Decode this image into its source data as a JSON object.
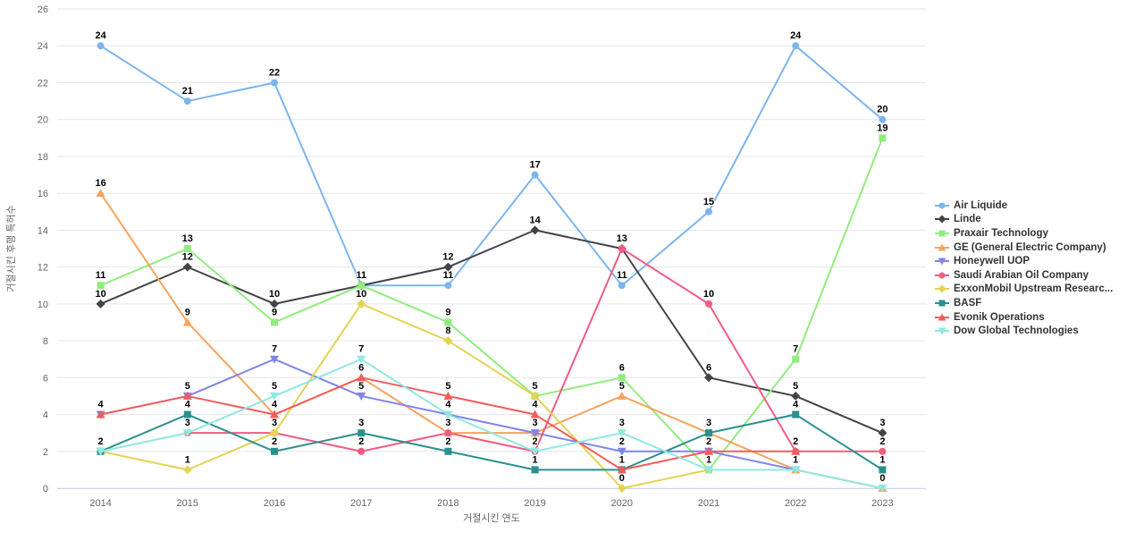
{
  "chart_data": {
    "type": "line",
    "title": "",
    "xlabel": "거절시킨 연도",
    "ylabel": "거절시킨 후행 특허수",
    "categories": [
      "2014",
      "2015",
      "2016",
      "2017",
      "2018",
      "2019",
      "2020",
      "2021",
      "2022",
      "2023"
    ],
    "ylim": [
      0,
      26
    ],
    "ytick_step": 2,
    "yticks": [
      0,
      2,
      4,
      6,
      8,
      10,
      12,
      14,
      16,
      18,
      20,
      22,
      24,
      26
    ],
    "grid": true,
    "legend_position": "right",
    "background_color": "#ffffff",
    "gridline_color": "#e6e6e6",
    "xaxis_line_color": "#ccd6eb",
    "tick_label_color": "#666666",
    "legend_text_color": "#333333",
    "data_label_color": "#000000",
    "series": [
      {
        "name": "Air Liquide",
        "color": "#7cb5ec",
        "marker": "circle",
        "values": [
          24,
          21,
          22,
          11,
          11,
          17,
          11,
          15,
          24,
          20
        ]
      },
      {
        "name": "Linde",
        "color": "#434348",
        "marker": "diamond",
        "values": [
          10,
          12,
          10,
          11,
          12,
          14,
          13,
          6,
          5,
          3
        ]
      },
      {
        "name": "Praxair Technology",
        "color": "#90ed7d",
        "marker": "square",
        "values": [
          11,
          13,
          9,
          11,
          9,
          5,
          6,
          1,
          7,
          19
        ]
      },
      {
        "name": "GE (General Electric Company)",
        "color": "#f7a35c",
        "marker": "triangle",
        "values": [
          16,
          9,
          4,
          6,
          3,
          3,
          5,
          3,
          1,
          0
        ]
      },
      {
        "name": "Honeywell UOP",
        "color": "#8085e9",
        "marker": "triangle-down",
        "values": [
          4,
          5,
          7,
          5,
          4,
          3,
          2,
          2,
          1,
          null
        ]
      },
      {
        "name": "Saudi Arabian Oil Company",
        "color": "#f15c80",
        "marker": "circle",
        "values": [
          null,
          3,
          3,
          2,
          3,
          2,
          13,
          10,
          2,
          2
        ]
      },
      {
        "name": "ExxonMobil Upstream Researc...",
        "color": "#e4d354",
        "marker": "diamond",
        "values": [
          2,
          1,
          3,
          10,
          8,
          5,
          0,
          1,
          null,
          null
        ]
      },
      {
        "name": "BASF",
        "color": "#2b908f",
        "marker": "square",
        "values": [
          2,
          4,
          2,
          3,
          2,
          1,
          1,
          3,
          4,
          1
        ]
      },
      {
        "name": "Evonik Operations",
        "color": "#f45b5b",
        "marker": "triangle",
        "values": [
          4,
          5,
          4,
          6,
          5,
          4,
          1,
          2,
          2,
          null
        ]
      },
      {
        "name": "Dow Global Technologies",
        "color": "#91e8e1",
        "marker": "triangle-down",
        "values": [
          2,
          3,
          5,
          7,
          4,
          2,
          3,
          1,
          1,
          0
        ]
      }
    ]
  }
}
